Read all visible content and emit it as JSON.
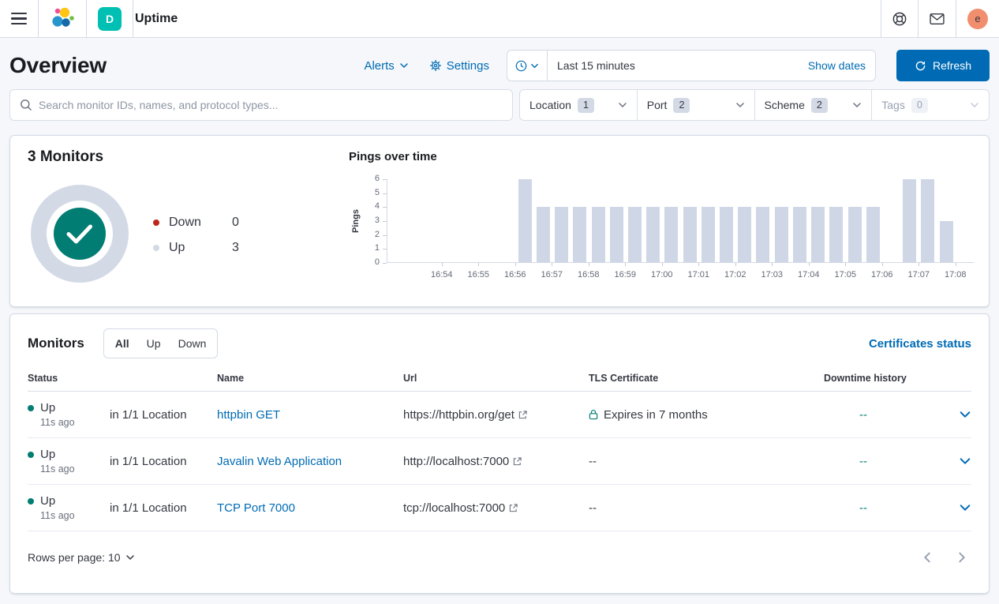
{
  "colors": {
    "primary": "#006BB4",
    "success": "#017D73",
    "danger": "#BD271E",
    "bar": "#CFD7E6",
    "ring": "#D3DAE6",
    "border": "#D3DAE6",
    "text": "#343741",
    "title": "#1A1C21",
    "subdued": "#69707D",
    "pagebg": "#F5F7FA",
    "space": "#00BFB3",
    "avatar": "#F18E6E"
  },
  "icons": {
    "menu": "hamburger ≡",
    "elastic-logo": "cluster-of-circles",
    "help": "life-ring",
    "newsfeed": "envelope",
    "clock": "clock-face",
    "chevron-down": "⌄",
    "gear": "⚙",
    "refresh": "↻",
    "search": "magnifier",
    "check": "✓",
    "lock": "padlock",
    "external-link": "↗",
    "chevron-left": "‹",
    "chevron-right": "›"
  },
  "topbar": {
    "app_title": "Uptime",
    "space_initial": "D",
    "avatar_initial": "e"
  },
  "header": {
    "title": "Overview",
    "alerts_label": "Alerts",
    "settings_label": "Settings",
    "time_range": "Last 15 minutes",
    "show_dates_label": "Show dates",
    "refresh_label": "Refresh"
  },
  "filters": {
    "search_placeholder": "Search monitor IDs, names, and protocol types...",
    "items": [
      {
        "label": "Location",
        "count": "1",
        "disabled": false
      },
      {
        "label": "Port",
        "count": "2",
        "disabled": false
      },
      {
        "label": "Scheme",
        "count": "2",
        "disabled": false
      },
      {
        "label": "Tags",
        "count": "0",
        "disabled": true
      }
    ]
  },
  "snapshot": {
    "title": "3 Monitors",
    "legend": [
      {
        "label": "Down",
        "value": "0",
        "color": "#BD271E"
      },
      {
        "label": "Up",
        "value": "3",
        "color": "#D3DAE6"
      }
    ]
  },
  "chart_data": {
    "type": "bar",
    "title": "Pings over time",
    "ylabel": "Pings",
    "ylim": [
      0,
      6
    ],
    "y_ticks": [
      6,
      5,
      4,
      3,
      2,
      1,
      0
    ],
    "bar_color": "#CFD7E6",
    "x_domain": {
      "start": "16:52:30",
      "end": "17:08:30",
      "total_seconds": 960,
      "bucket_seconds": 30
    },
    "x_ticks": [
      {
        "label": "16:54",
        "s": 90
      },
      {
        "label": "16:55",
        "s": 150
      },
      {
        "label": "16:56",
        "s": 210
      },
      {
        "label": "16:57",
        "s": 270
      },
      {
        "label": "16:58",
        "s": 330
      },
      {
        "label": "16:59",
        "s": 390
      },
      {
        "label": "17:00",
        "s": 450
      },
      {
        "label": "17:01",
        "s": 510
      },
      {
        "label": "17:02",
        "s": 570
      },
      {
        "label": "17:03",
        "s": 630
      },
      {
        "label": "17:04",
        "s": 690
      },
      {
        "label": "17:05",
        "s": 750
      },
      {
        "label": "17:06",
        "s": 810
      },
      {
        "label": "17:07",
        "s": 870
      },
      {
        "label": "17:08",
        "s": 930
      }
    ],
    "bars": [
      {
        "time": "16:56:00",
        "s": 210,
        "pings": 6
      },
      {
        "time": "16:56:30",
        "s": 240,
        "pings": 4
      },
      {
        "time": "16:57:00",
        "s": 270,
        "pings": 4
      },
      {
        "time": "16:57:30",
        "s": 300,
        "pings": 4
      },
      {
        "time": "16:58:00",
        "s": 330,
        "pings": 4
      },
      {
        "time": "16:58:30",
        "s": 360,
        "pings": 4
      },
      {
        "time": "16:59:00",
        "s": 390,
        "pings": 4
      },
      {
        "time": "16:59:30",
        "s": 420,
        "pings": 4
      },
      {
        "time": "17:00:00",
        "s": 450,
        "pings": 4
      },
      {
        "time": "17:00:30",
        "s": 480,
        "pings": 4
      },
      {
        "time": "17:01:00",
        "s": 510,
        "pings": 4
      },
      {
        "time": "17:01:30",
        "s": 540,
        "pings": 4
      },
      {
        "time": "17:02:00",
        "s": 570,
        "pings": 4
      },
      {
        "time": "17:02:30",
        "s": 600,
        "pings": 4
      },
      {
        "time": "17:03:00",
        "s": 630,
        "pings": 4
      },
      {
        "time": "17:03:30",
        "s": 660,
        "pings": 4
      },
      {
        "time": "17:04:00",
        "s": 690,
        "pings": 4
      },
      {
        "time": "17:04:30",
        "s": 720,
        "pings": 4
      },
      {
        "time": "17:05:00",
        "s": 750,
        "pings": 4
      },
      {
        "time": "17:05:30",
        "s": 780,
        "pings": 4
      },
      {
        "time": "17:06:30",
        "s": 840,
        "pings": 6
      },
      {
        "time": "17:07:00",
        "s": 870,
        "pings": 6
      },
      {
        "time": "17:07:30",
        "s": 900,
        "pings": 3
      }
    ]
  },
  "monitors": {
    "title": "Monitors",
    "tabs": [
      {
        "label": "All",
        "selected": true
      },
      {
        "label": "Up",
        "selected": false
      },
      {
        "label": "Down",
        "selected": false
      }
    ],
    "certificates_link": "Certificates status",
    "columns": [
      "Status",
      "Name",
      "Url",
      "TLS Certificate",
      "Downtime history"
    ],
    "rows": [
      {
        "status": "Up",
        "checked_ago": "11s ago",
        "location": "in 1/1 Location",
        "name": "httpbin GET",
        "url": "https://httpbin.org/get",
        "tls": "Expires in 7 months",
        "downtime": "--"
      },
      {
        "status": "Up",
        "checked_ago": "11s ago",
        "location": "in 1/1 Location",
        "name": "Javalin Web Application",
        "url": "http://localhost:7000",
        "tls": "--",
        "downtime": "--"
      },
      {
        "status": "Up",
        "checked_ago": "11s ago",
        "location": "in 1/1 Location",
        "name": "TCP Port 7000",
        "url": "tcp://localhost:7000",
        "tls": "--",
        "downtime": "--"
      }
    ],
    "pagination": {
      "rows_per_page_label": "Rows per page: 10"
    }
  }
}
